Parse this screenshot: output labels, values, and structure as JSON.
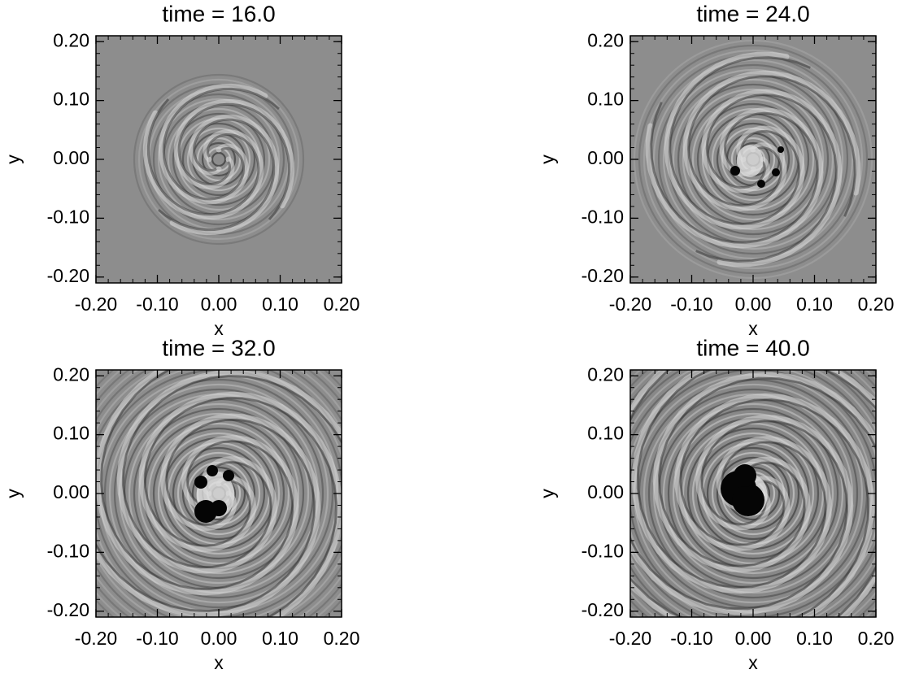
{
  "chart_data": [
    {
      "type": "image",
      "title": "time = 16.0",
      "xlabel": "x",
      "ylabel": "y",
      "xlim": [
        -0.2,
        0.2
      ],
      "ylim": [
        -0.21,
        0.21
      ],
      "xticks": [
        {
          "value": -0.2,
          "label": "-0.20"
        },
        {
          "value": -0.1,
          "label": "-0.10"
        },
        {
          "value": 0,
          "label": "0.00"
        },
        {
          "value": 0.1,
          "label": "0.10"
        },
        {
          "value": 0.2,
          "label": "0.20"
        }
      ],
      "yticks": [
        {
          "value": -0.2,
          "label": "-0.20"
        },
        {
          "value": -0.1,
          "label": "-0.10"
        },
        {
          "value": 0,
          "label": "0.00"
        },
        {
          "value": 0.1,
          "label": "0.10"
        },
        {
          "value": 0.2,
          "label": "0.20"
        }
      ]
    },
    {
      "type": "image",
      "title": "time = 24.0",
      "xlabel": "x",
      "ylabel": "y",
      "xlim": [
        -0.2,
        0.2
      ],
      "ylim": [
        -0.21,
        0.21
      ],
      "xticks": [
        {
          "value": -0.2,
          "label": "-0.20"
        },
        {
          "value": -0.1,
          "label": "-0.10"
        },
        {
          "value": 0,
          "label": "0.00"
        },
        {
          "value": 0.1,
          "label": "0.10"
        },
        {
          "value": 0.2,
          "label": "0.20"
        }
      ],
      "yticks": [
        {
          "value": -0.2,
          "label": "-0.20"
        },
        {
          "value": -0.1,
          "label": "-0.10"
        },
        {
          "value": 0,
          "label": "0.00"
        },
        {
          "value": 0.1,
          "label": "0.10"
        },
        {
          "value": 0.2,
          "label": "0.20"
        }
      ]
    },
    {
      "type": "image",
      "title": "time = 32.0",
      "xlabel": "x",
      "ylabel": "y",
      "xlim": [
        -0.2,
        0.2
      ],
      "ylim": [
        -0.21,
        0.21
      ],
      "xticks": [
        {
          "value": -0.2,
          "label": "-0.20"
        },
        {
          "value": -0.1,
          "label": "-0.10"
        },
        {
          "value": 0,
          "label": "0.00"
        },
        {
          "value": 0.1,
          "label": "0.10"
        },
        {
          "value": 0.2,
          "label": "0.20"
        }
      ],
      "yticks": [
        {
          "value": -0.2,
          "label": "-0.20"
        },
        {
          "value": -0.1,
          "label": "-0.10"
        },
        {
          "value": 0,
          "label": "0.00"
        },
        {
          "value": 0.1,
          "label": "0.10"
        },
        {
          "value": 0.2,
          "label": "0.20"
        }
      ]
    },
    {
      "type": "image",
      "title": "time = 40.0",
      "xlabel": "x",
      "ylabel": "y",
      "xlim": [
        -0.2,
        0.2
      ],
      "ylim": [
        -0.21,
        0.21
      ],
      "xticks": [
        {
          "value": -0.2,
          "label": "-0.20"
        },
        {
          "value": -0.1,
          "label": "-0.10"
        },
        {
          "value": 0,
          "label": "0.00"
        },
        {
          "value": 0.1,
          "label": "0.10"
        },
        {
          "value": 0.2,
          "label": "0.20"
        }
      ],
      "yticks": [
        {
          "value": -0.2,
          "label": "-0.20"
        },
        {
          "value": -0.1,
          "label": "-0.10"
        },
        {
          "value": 0,
          "label": "0.00"
        },
        {
          "value": 0.1,
          "label": "0.10"
        },
        {
          "value": 0.2,
          "label": "0.20"
        }
      ]
    }
  ]
}
